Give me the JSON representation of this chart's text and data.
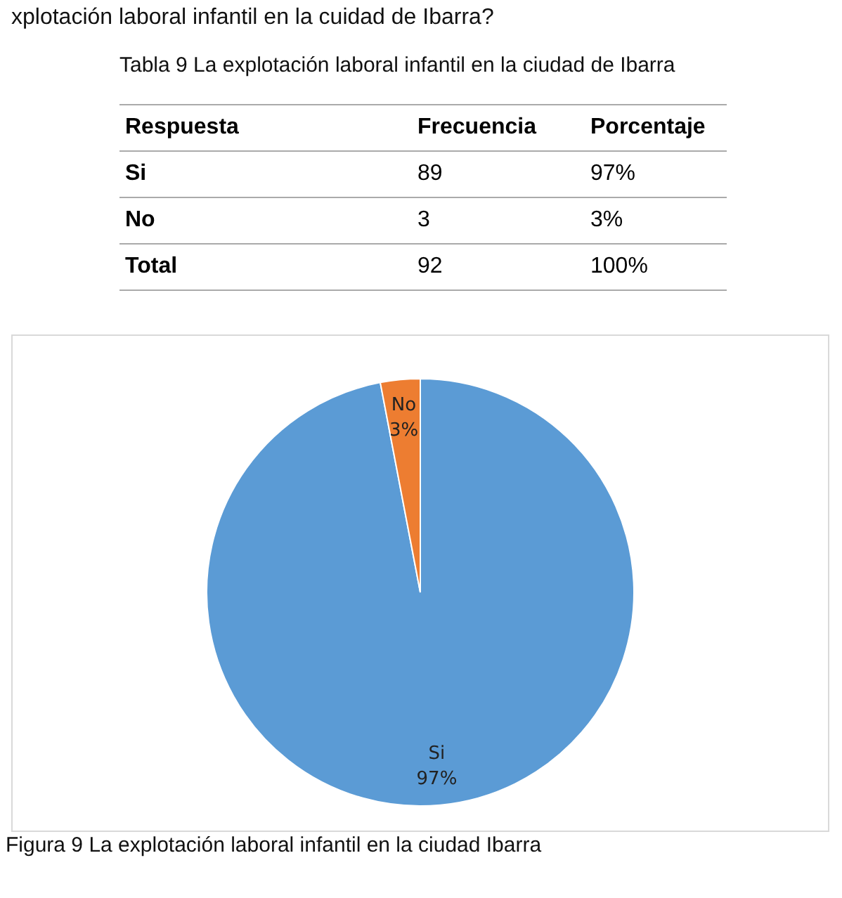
{
  "chart_data": [
    {
      "type": "other",
      "title": "xplotación laboral infantil en la cuidad de  Ibarra?",
      "subtitle": "Tabla 9 La explotación laboral infantil en la ciudad de Ibarra",
      "annotations": [
        "Respuesta",
        "Frecuencia",
        "Porcentaje",
        "Si",
        "89",
        "97%",
        "No",
        "3",
        "3%",
        "Total",
        "92",
        "100%"
      ]
    },
    {
      "type": "pie",
      "categories": [
        "Si",
        "No"
      ],
      "values": [
        97,
        3
      ],
      "value_labels": [
        "97%",
        "3%"
      ],
      "colors": [
        "#5b9bd5",
        "#ed7d31"
      ],
      "annotations": [
        "Figura 9 La explotación laboral infantil en la ciudad Ibarra"
      ]
    }
  ]
}
